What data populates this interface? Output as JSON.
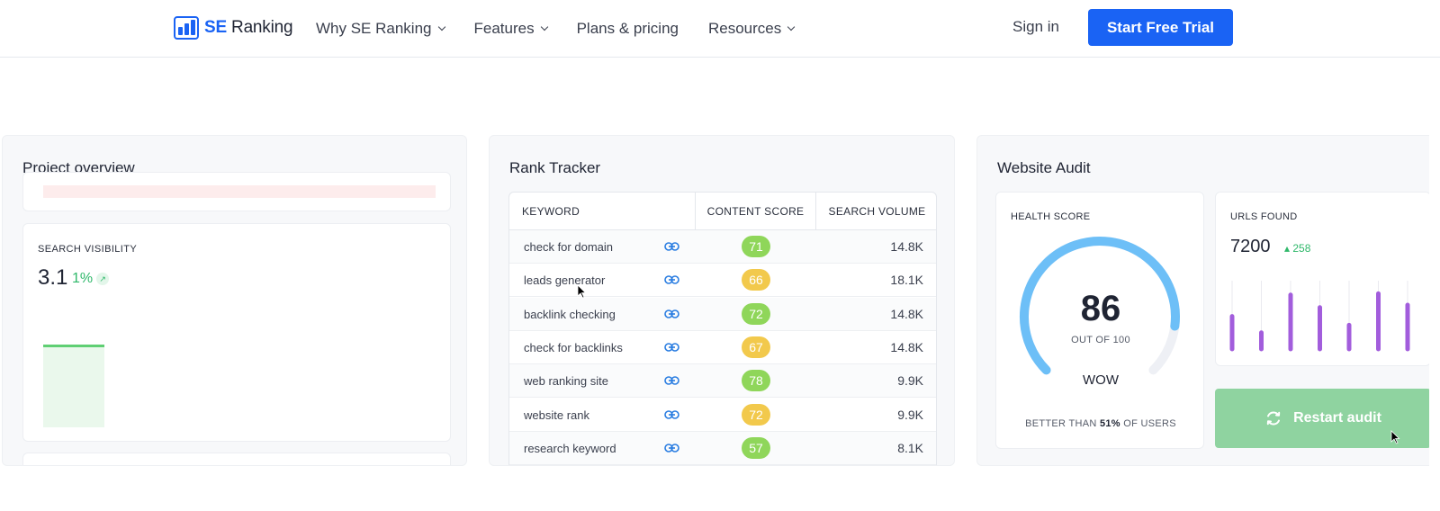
{
  "header": {
    "logo_brand": "SE",
    "logo_name": "Ranking",
    "nav": [
      {
        "label": "Why SE Ranking",
        "has_dropdown": true
      },
      {
        "label": "Features",
        "has_dropdown": true
      },
      {
        "label": "Plans & pricing",
        "has_dropdown": false
      },
      {
        "label": "Resources",
        "has_dropdown": true
      }
    ],
    "sign_in": "Sign in",
    "trial_button": "Start Free Trial"
  },
  "project_overview": {
    "title": "Project overview",
    "search_visibility": {
      "label": "SEARCH VISIBILITY",
      "value": "3.1",
      "change": "1%",
      "change_icon": "arrow-up-right-icon"
    }
  },
  "rank_tracker": {
    "title": "Rank Tracker",
    "columns": [
      "KEYWORD",
      "CONTENT SCORE",
      "SEARCH VOLUME"
    ],
    "rows": [
      {
        "keyword": "check for domain",
        "score": "71",
        "score_color": "#8fd65a",
        "volume": "14.8K"
      },
      {
        "keyword": "leads generator",
        "score": "66",
        "score_color": "#f2c94c",
        "volume": "18.1K"
      },
      {
        "keyword": "backlink checking",
        "score": "72",
        "score_color": "#8fd65a",
        "volume": "14.8K"
      },
      {
        "keyword": "check for backlinks",
        "score": "67",
        "score_color": "#f2c94c",
        "volume": "14.8K"
      },
      {
        "keyword": "web ranking site",
        "score": "78",
        "score_color": "#8fd65a",
        "volume": "9.9K"
      },
      {
        "keyword": "website rank",
        "score": "72",
        "score_color": "#f2c94c",
        "volume": "9.9K"
      },
      {
        "keyword": "research keyword",
        "score": "57",
        "score_color": "#8fd65a",
        "volume": "8.1K"
      }
    ]
  },
  "website_audit": {
    "title": "Website Audit",
    "health_score": {
      "label": "HEALTH SCORE",
      "value": "86",
      "out_of": "OUT OF 100",
      "verdict": "WOW",
      "better_prefix": "BETTER THAN ",
      "better_pct": "51%",
      "better_suffix": " OF USERS",
      "gauge_fraction": 0.86,
      "gauge_color": "#6dbff7",
      "gauge_track": "#eef0f5"
    },
    "urls_found": {
      "label": "URLS FOUND",
      "value": "7200",
      "change": "258",
      "bar_levels": [
        0.52,
        0.26,
        0.86,
        0.66,
        0.38,
        0.88,
        0.7
      ],
      "bar_color": "#a25ddc"
    },
    "restart_button": "Restart audit"
  }
}
